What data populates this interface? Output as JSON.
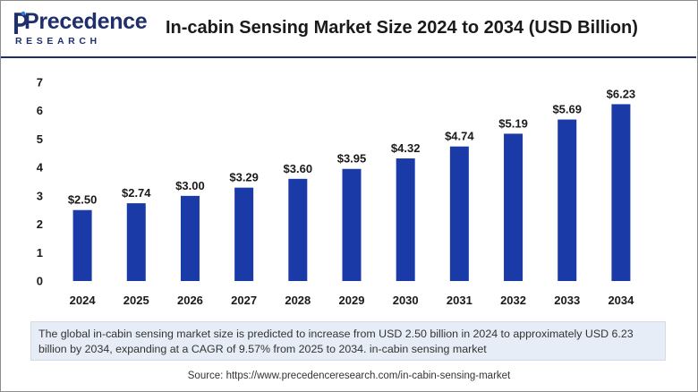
{
  "brand": {
    "logo_main": "Precedence",
    "logo_sub": "RESEARCH",
    "colors": {
      "primary": "#1f2f6b",
      "accent": "#2e7bd6"
    }
  },
  "header": {
    "title": "In-cabin Sensing Market Size 2024 to 2034 (USD Billion)"
  },
  "chart_data": {
    "type": "bar",
    "title": "In-cabin Sensing Market Size 2024 to 2034 (USD Billion)",
    "categories": [
      "2024",
      "2025",
      "2026",
      "2027",
      "2028",
      "2029",
      "2030",
      "2031",
      "2032",
      "2033",
      "2034"
    ],
    "values": [
      2.5,
      2.74,
      3.0,
      3.29,
      3.6,
      3.95,
      4.32,
      4.74,
      5.19,
      5.69,
      6.23
    ],
    "data_labels": [
      "$2.50",
      "$2.74",
      "$3.00",
      "$3.29",
      "$3.60",
      "$3.95",
      "$4.32",
      "$4.74",
      "$5.19",
      "$5.69",
      "$6.23"
    ],
    "xlabel": "",
    "ylabel": "",
    "ylim": [
      0,
      7
    ],
    "yticks": [
      0,
      1,
      2,
      3,
      4,
      5,
      6,
      7
    ],
    "grid": false,
    "legend": "none",
    "bar_color": "#1a3aa8"
  },
  "description": "The global in-cabin sensing market size is predicted to increase from USD 2.50 billion in 2024 to approximately USD 6.23 billion by 2034, expanding at a CAGR of 9.57% from 2025 to 2034. in-cabin sensing market",
  "source": "Source: https://www.precedenceresearch.com/in-cabin-sensing-market"
}
